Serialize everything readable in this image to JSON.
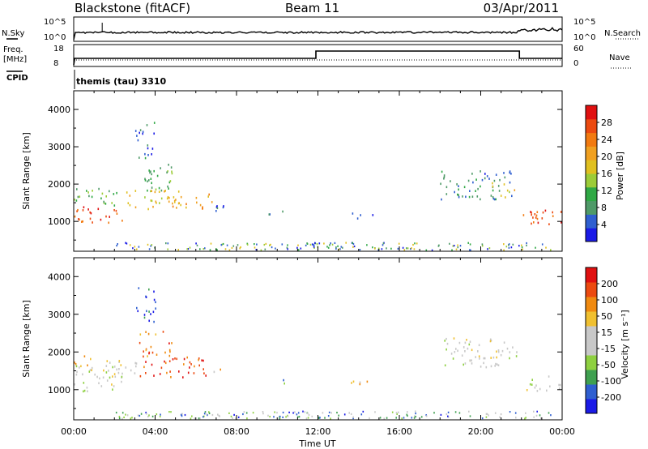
{
  "header": {
    "title_left": "Blackstone (fitACF)",
    "title_center": "Beam 11",
    "title_right": "03/Apr/2011"
  },
  "noise_panel": {
    "left_label": "N.Sky",
    "left_ticks": [
      "10^5",
      "10^0"
    ],
    "right_label": "N.Search",
    "right_ticks": [
      "10^5",
      "10^0"
    ]
  },
  "freq_panel": {
    "left_label_1": "Freq.",
    "left_label_2": "[MHz]",
    "left_ticks": [
      "18",
      "8"
    ],
    "right_label": "Nave",
    "right_ticks": [
      "60",
      "0"
    ],
    "cpid_label": "CPID",
    "program_label": "themis (tau) 3310"
  },
  "chart_data": [
    {
      "type": "heatmap",
      "name": "power",
      "ylabel": "Slant Range [km]",
      "yticks": [
        1000,
        2000,
        3000,
        4000
      ],
      "ylim": [
        200,
        4500
      ],
      "xlim_hours": [
        0,
        24
      ],
      "colorbar_label": "Power [dB]",
      "colorbar_ticks": [
        "28",
        "24",
        "20",
        "16",
        "12",
        "8",
        "4"
      ],
      "colorbar_colors": [
        "#1a1ae6",
        "#2f5fd0",
        "#4f9a68",
        "#2fa844",
        "#9ccc38",
        "#e0c020",
        "#f0a020",
        "#f27a10",
        "#ec4a10",
        "#e01010"
      ],
      "clusters": [
        {
          "t": [
            0.0,
            2.4
          ],
          "r": [
            950,
            1450
          ],
          "level": 0.9
        },
        {
          "t": [
            0.0,
            2.4
          ],
          "r": [
            1450,
            1900
          ],
          "level": 0.35
        },
        {
          "t": [
            2.4,
            5.2
          ],
          "r": [
            1300,
            1850
          ],
          "level": 0.55
        },
        {
          "t": [
            3.2,
            4.8
          ],
          "r": [
            1850,
            2600
          ],
          "level": 0.3
        },
        {
          "t": [
            3.0,
            4.0
          ],
          "r": [
            2700,
            3750
          ],
          "level": 0.15
        },
        {
          "t": [
            4.8,
            6.8
          ],
          "r": [
            1350,
            1750
          ],
          "level": 0.7
        },
        {
          "t": [
            6.8,
            7.4
          ],
          "r": [
            1050,
            1450
          ],
          "level": 0.12
        },
        {
          "t": [
            9.2,
            10.6
          ],
          "r": [
            1150,
            1300
          ],
          "level": 0.12
        },
        {
          "t": [
            13.5,
            15.0
          ],
          "r": [
            1100,
            1250
          ],
          "level": 0.1
        },
        {
          "t": [
            18.0,
            21.5
          ],
          "r": [
            1600,
            2400
          ],
          "level": 0.2
        },
        {
          "t": [
            20.5,
            21.7
          ],
          "r": [
            1650,
            2050
          ],
          "level": 0.5
        },
        {
          "t": [
            22.0,
            24.0
          ],
          "r": [
            950,
            1400
          ],
          "level": 0.88
        }
      ]
    },
    {
      "type": "heatmap",
      "name": "velocity",
      "ylabel": "Slant Range [km]",
      "yticks": [
        1000,
        2000,
        3000,
        4000
      ],
      "ylim": [
        200,
        4500
      ],
      "xlim_hours": [
        0,
        24
      ],
      "xticks": [
        "00:00",
        "04:00",
        "08:00",
        "12:00",
        "16:00",
        "20:00",
        "00:00"
      ],
      "xlabel": "Time UT",
      "colorbar_label": "Velocity [m s⁻¹]",
      "colorbar_ticks": [
        "200",
        "100",
        "50",
        "15",
        "-15",
        "-50",
        "-100",
        "-200"
      ],
      "colorbar_colors": [
        "#1a1ae6",
        "#2f5fd0",
        "#3fa050",
        "#8ed040",
        "#c8c8c8",
        "#c8c8c8",
        "#f0c030",
        "#f08a10",
        "#ec4a10",
        "#e01010"
      ],
      "clusters": [
        {
          "t": [
            0.0,
            2.4
          ],
          "r": [
            950,
            1650
          ],
          "level": 0.5
        },
        {
          "t": [
            0.0,
            0.9
          ],
          "r": [
            1650,
            1950
          ],
          "level": 0.75
        },
        {
          "t": [
            1.0,
            3.2
          ],
          "r": [
            1300,
            1800
          ],
          "level": 0.5
        },
        {
          "t": [
            3.2,
            6.6
          ],
          "r": [
            1350,
            1900
          ],
          "level": 0.92
        },
        {
          "t": [
            3.2,
            4.8
          ],
          "r": [
            1900,
            2600
          ],
          "level": 0.85
        },
        {
          "t": [
            3.0,
            4.0
          ],
          "r": [
            2800,
            3750
          ],
          "level": 0.05
        },
        {
          "t": [
            6.6,
            7.2
          ],
          "r": [
            1350,
            1600
          ],
          "level": 0.7
        },
        {
          "t": [
            10.0,
            10.8
          ],
          "r": [
            1180,
            1280
          ],
          "level": 0.25
        },
        {
          "t": [
            13.5,
            15.0
          ],
          "r": [
            1100,
            1250
          ],
          "level": 0.6
        },
        {
          "t": [
            18.0,
            21.8
          ],
          "r": [
            1600,
            2400
          ],
          "level": 0.5
        },
        {
          "t": [
            22.0,
            24.0
          ],
          "r": [
            950,
            1400
          ],
          "level": 0.5
        }
      ]
    }
  ]
}
